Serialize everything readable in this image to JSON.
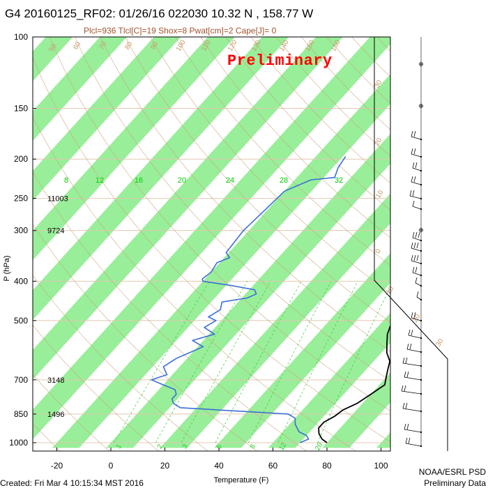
{
  "header": {
    "title": "G4 20160125_RF02: 01/26/16 022030  10.32 N , 158.77 W",
    "subtitle": "Plcl=936 Tlcl[C]=19 Shox=8 Pwat[cm]=2 Cape[J]= 0",
    "watermark": "Preliminary"
  },
  "footer": {
    "created": "Created: Fri Mar  4 10:15:34 MST 2016",
    "org": "NOAA/ESRL PSD",
    "status": "Preliminary Data"
  },
  "colors": {
    "band": "#99ee99",
    "temperature": "#000000",
    "dewpoint": "#3a6fd8",
    "adiabat": "#c9a27c",
    "mixing_ratio": "#33cc33",
    "isobar": "#e0c8b0"
  },
  "chart_data": {
    "type": "skew-t",
    "xlabel": "Temperature (F)",
    "ylabel": "P (hPa)",
    "x_ticks": [
      -20,
      0,
      20,
      40,
      60,
      80,
      100
    ],
    "xlim": [
      -29,
      110
    ],
    "y_ticks": [
      100,
      150,
      200,
      250,
      300,
      400,
      500,
      700,
      850,
      1000
    ],
    "ylim": [
      1015,
      100
    ],
    "y_scale": "log",
    "height_labels": [
      {
        "p": 250,
        "text": "11003"
      },
      {
        "p": 300,
        "text": "9724"
      },
      {
        "p": 700,
        "text": "3148"
      },
      {
        "p": 850,
        "text": "1496"
      }
    ],
    "isotherm_labels": [
      {
        "text": "8",
        "p": 226,
        "t": -16
      },
      {
        "text": "12",
        "p": 226,
        "t": 0
      },
      {
        "text": "16",
        "p": 226,
        "t": 14
      },
      {
        "text": "20",
        "p": 226,
        "t": 30
      },
      {
        "text": "24",
        "p": 226,
        "t": 48
      },
      {
        "text": "28",
        "p": 226,
        "t": 68
      },
      {
        "text": "32",
        "p": 226,
        "t": 88
      }
    ],
    "dry_adiabat_labels": [
      "50",
      "60",
      "70",
      "80",
      "90",
      "100",
      "110",
      "120",
      "130",
      "140",
      "150",
      "160"
    ],
    "right_adiabat_labels": [
      "30",
      "20",
      "10",
      "0",
      "10",
      "20",
      "30"
    ],
    "mixing_ratio_labels": [
      "1",
      "2",
      "3",
      "5",
      "8",
      "12",
      "20"
    ],
    "series": [
      {
        "name": "Temperature",
        "points": [
          [
            177,
            36
          ],
          [
            190,
            37
          ],
          [
            200,
            38
          ],
          [
            210,
            40
          ],
          [
            220,
            42
          ],
          [
            235,
            44
          ],
          [
            250,
            46
          ],
          [
            270,
            49
          ],
          [
            290,
            52
          ],
          [
            300,
            53
          ],
          [
            320,
            54
          ],
          [
            340,
            55
          ],
          [
            360,
            56
          ],
          [
            380,
            57
          ],
          [
            400,
            58
          ],
          [
            430,
            60
          ],
          [
            460,
            61
          ],
          [
            490,
            63
          ],
          [
            510,
            64
          ],
          [
            540,
            66
          ],
          [
            570,
            69
          ],
          [
            600,
            72
          ],
          [
            630,
            76
          ],
          [
            660,
            78
          ],
          [
            690,
            80
          ],
          [
            720,
            82
          ],
          [
            760,
            80
          ],
          [
            800,
            78
          ],
          [
            830,
            75
          ],
          [
            860,
            74
          ],
          [
            890,
            72
          ],
          [
            920,
            72
          ],
          [
            950,
            74
          ],
          [
            980,
            77
          ],
          [
            1000,
            80
          ]
        ]
      },
      {
        "name": "Dewpoint",
        "points": [
          [
            197,
            -9
          ],
          [
            210,
            -8
          ],
          [
            222,
            -6
          ],
          [
            225,
            -14
          ],
          [
            240,
            -20
          ],
          [
            270,
            -21
          ],
          [
            300,
            -22
          ],
          [
            340,
            -21
          ],
          [
            350,
            -18
          ],
          [
            360,
            -21
          ],
          [
            380,
            -20
          ],
          [
            395,
            -21
          ],
          [
            400,
            -20
          ],
          [
            410,
            -8
          ],
          [
            420,
            2
          ],
          [
            430,
            4
          ],
          [
            440,
            2
          ],
          [
            450,
            -6
          ],
          [
            470,
            -4
          ],
          [
            490,
            -6
          ],
          [
            500,
            -2
          ],
          [
            520,
            -4
          ],
          [
            540,
            2
          ],
          [
            560,
            -4
          ],
          [
            580,
            2
          ],
          [
            620,
            -4
          ],
          [
            650,
            -6
          ],
          [
            680,
            -2
          ],
          [
            700,
            -6
          ],
          [
            720,
            0
          ],
          [
            740,
            6
          ],
          [
            760,
            8
          ],
          [
            780,
            8
          ],
          [
            800,
            10
          ],
          [
            820,
            14
          ],
          [
            850,
            56
          ],
          [
            870,
            60
          ],
          [
            900,
            62
          ],
          [
            920,
            64
          ],
          [
            940,
            66
          ],
          [
            960,
            70
          ],
          [
            980,
            72
          ],
          [
            1000,
            70
          ]
        ]
      }
    ],
    "wind_barbs": "right-margin profile (100-1000 hPa)"
  }
}
